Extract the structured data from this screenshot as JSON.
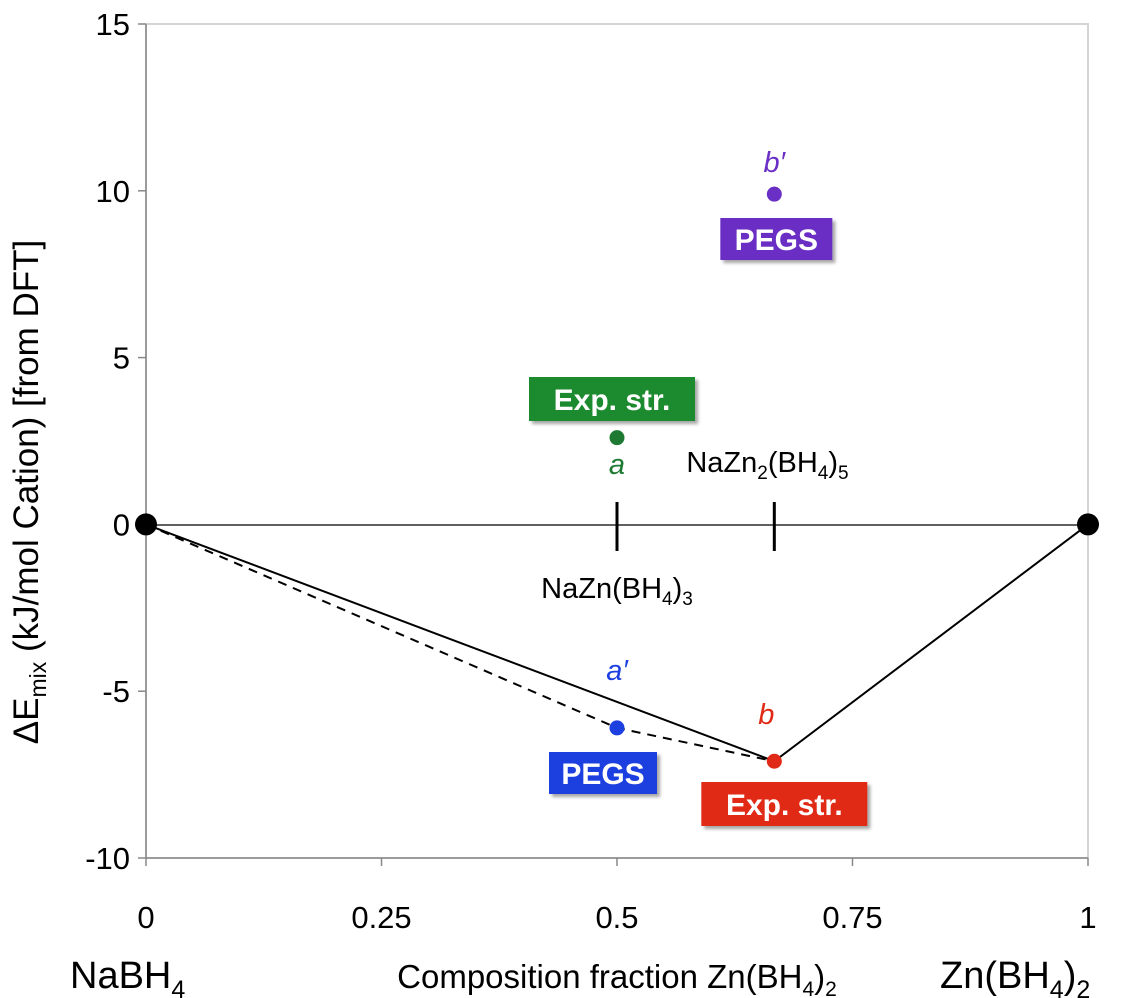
{
  "chart_data": {
    "type": "scatter",
    "ylabel_main": "ΔE",
    "ylabel_sub": "mix",
    "ylabel_rest": " (kJ/mol Cation) [from DFT]",
    "xlabel_main": "Composition fraction Zn(BH",
    "xlabel_sub": "4",
    "xlabel_close": ")",
    "xlabel_sub2": "2",
    "x_end_left": {
      "main": "NaBH",
      "sub": "4"
    },
    "x_end_right": {
      "main": "Zn(BH",
      "sub": "4",
      "close": ")",
      "sub2": "2"
    },
    "ylim": [
      -10,
      15
    ],
    "xlim": [
      0,
      1
    ],
    "yticks": [
      {
        "value": -10,
        "label": "-10"
      },
      {
        "value": -5,
        "label": "-5"
      },
      {
        "value": 0,
        "label": "0"
      },
      {
        "value": 5,
        "label": "5"
      },
      {
        "value": 10,
        "label": "10"
      },
      {
        "value": 15,
        "label": "15"
      }
    ],
    "xticks": [
      {
        "value": 0,
        "label": "0"
      },
      {
        "value": 0.25,
        "label": "0.25"
      },
      {
        "value": 0.5,
        "label": "0.5"
      },
      {
        "value": 0.75,
        "label": "0.75"
      },
      {
        "value": 1,
        "label": "1"
      }
    ],
    "grid": false,
    "zero_line": true,
    "hull_solid": [
      [
        0,
        0
      ],
      [
        0.667,
        -7.1
      ],
      [
        1,
        0
      ]
    ],
    "hull_dashed": [
      [
        0,
        0
      ],
      [
        0.5,
        -6.1
      ],
      [
        0.667,
        -7.1
      ]
    ],
    "points": [
      {
        "x": 0,
        "y": 0,
        "color": "#000000",
        "size": "large"
      },
      {
        "x": 1,
        "y": 0,
        "color": "#000000",
        "size": "large"
      },
      {
        "x": 0.5,
        "y": 2.6,
        "color": "#1e7a33",
        "size": "small",
        "label": "a",
        "tag": "Exp. str.",
        "tag_color": "#1e8a2e"
      },
      {
        "x": 0.667,
        "y": 9.9,
        "color": "#6a2fc4",
        "size": "small",
        "label": "b′",
        "tag": "PEGS",
        "tag_color": "#6a2fc4"
      },
      {
        "x": 0.5,
        "y": -6.1,
        "color": "#1c3fe0",
        "size": "small",
        "label": "a′",
        "tag": "PEGS",
        "tag_color": "#1c3fe0"
      },
      {
        "x": 0.667,
        "y": -7.1,
        "color": "#e02a17",
        "size": "small",
        "label": "b",
        "tag": "Exp. str.",
        "tag_color": "#e02a17"
      }
    ],
    "compound_markers": [
      {
        "x": 0.5,
        "main": "NaZn(BH",
        "sub": "4",
        "close": ")",
        "sub2": "3"
      },
      {
        "x": 0.667,
        "main": "NaZn",
        "sub": "2",
        "mid": "(BH",
        "sub_b": "4",
        "close": ")",
        "sub2": "5"
      }
    ]
  }
}
